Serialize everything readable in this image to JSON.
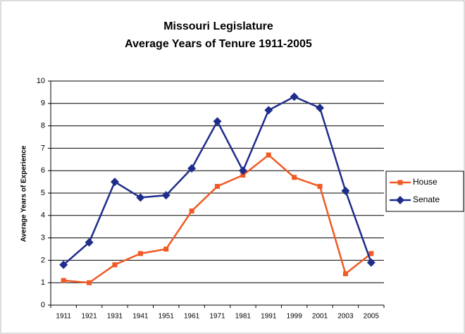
{
  "chart_data": {
    "type": "line",
    "title": "Missouri Legislature",
    "subtitle": "Average Years of Tenure 1911-2005",
    "y_label": "Average Years of Experience",
    "categories": [
      "1911",
      "1921",
      "1931",
      "1941",
      "1951",
      "1961",
      "1971",
      "1981",
      "1991",
      "1999",
      "2001",
      "2003",
      "2005"
    ],
    "series": [
      {
        "name": "House",
        "color": "#f05a24",
        "marker": "square",
        "values": [
          1.1,
          1.0,
          1.8,
          2.3,
          2.5,
          4.2,
          5.3,
          5.8,
          6.7,
          5.7,
          5.3,
          1.4,
          2.3
        ]
      },
      {
        "name": "Senate",
        "color": "#1f2d8a",
        "marker": "diamond",
        "values": [
          1.8,
          2.8,
          5.5,
          4.8,
          4.9,
          6.1,
          8.2,
          6.0,
          8.7,
          9.3,
          8.8,
          5.1,
          1.9
        ]
      }
    ],
    "ylim": [
      0,
      10
    ],
    "yticks": [
      0,
      1,
      2,
      3,
      4,
      5,
      6,
      7,
      8,
      9,
      10
    ],
    "grid": true,
    "legend": "right"
  }
}
